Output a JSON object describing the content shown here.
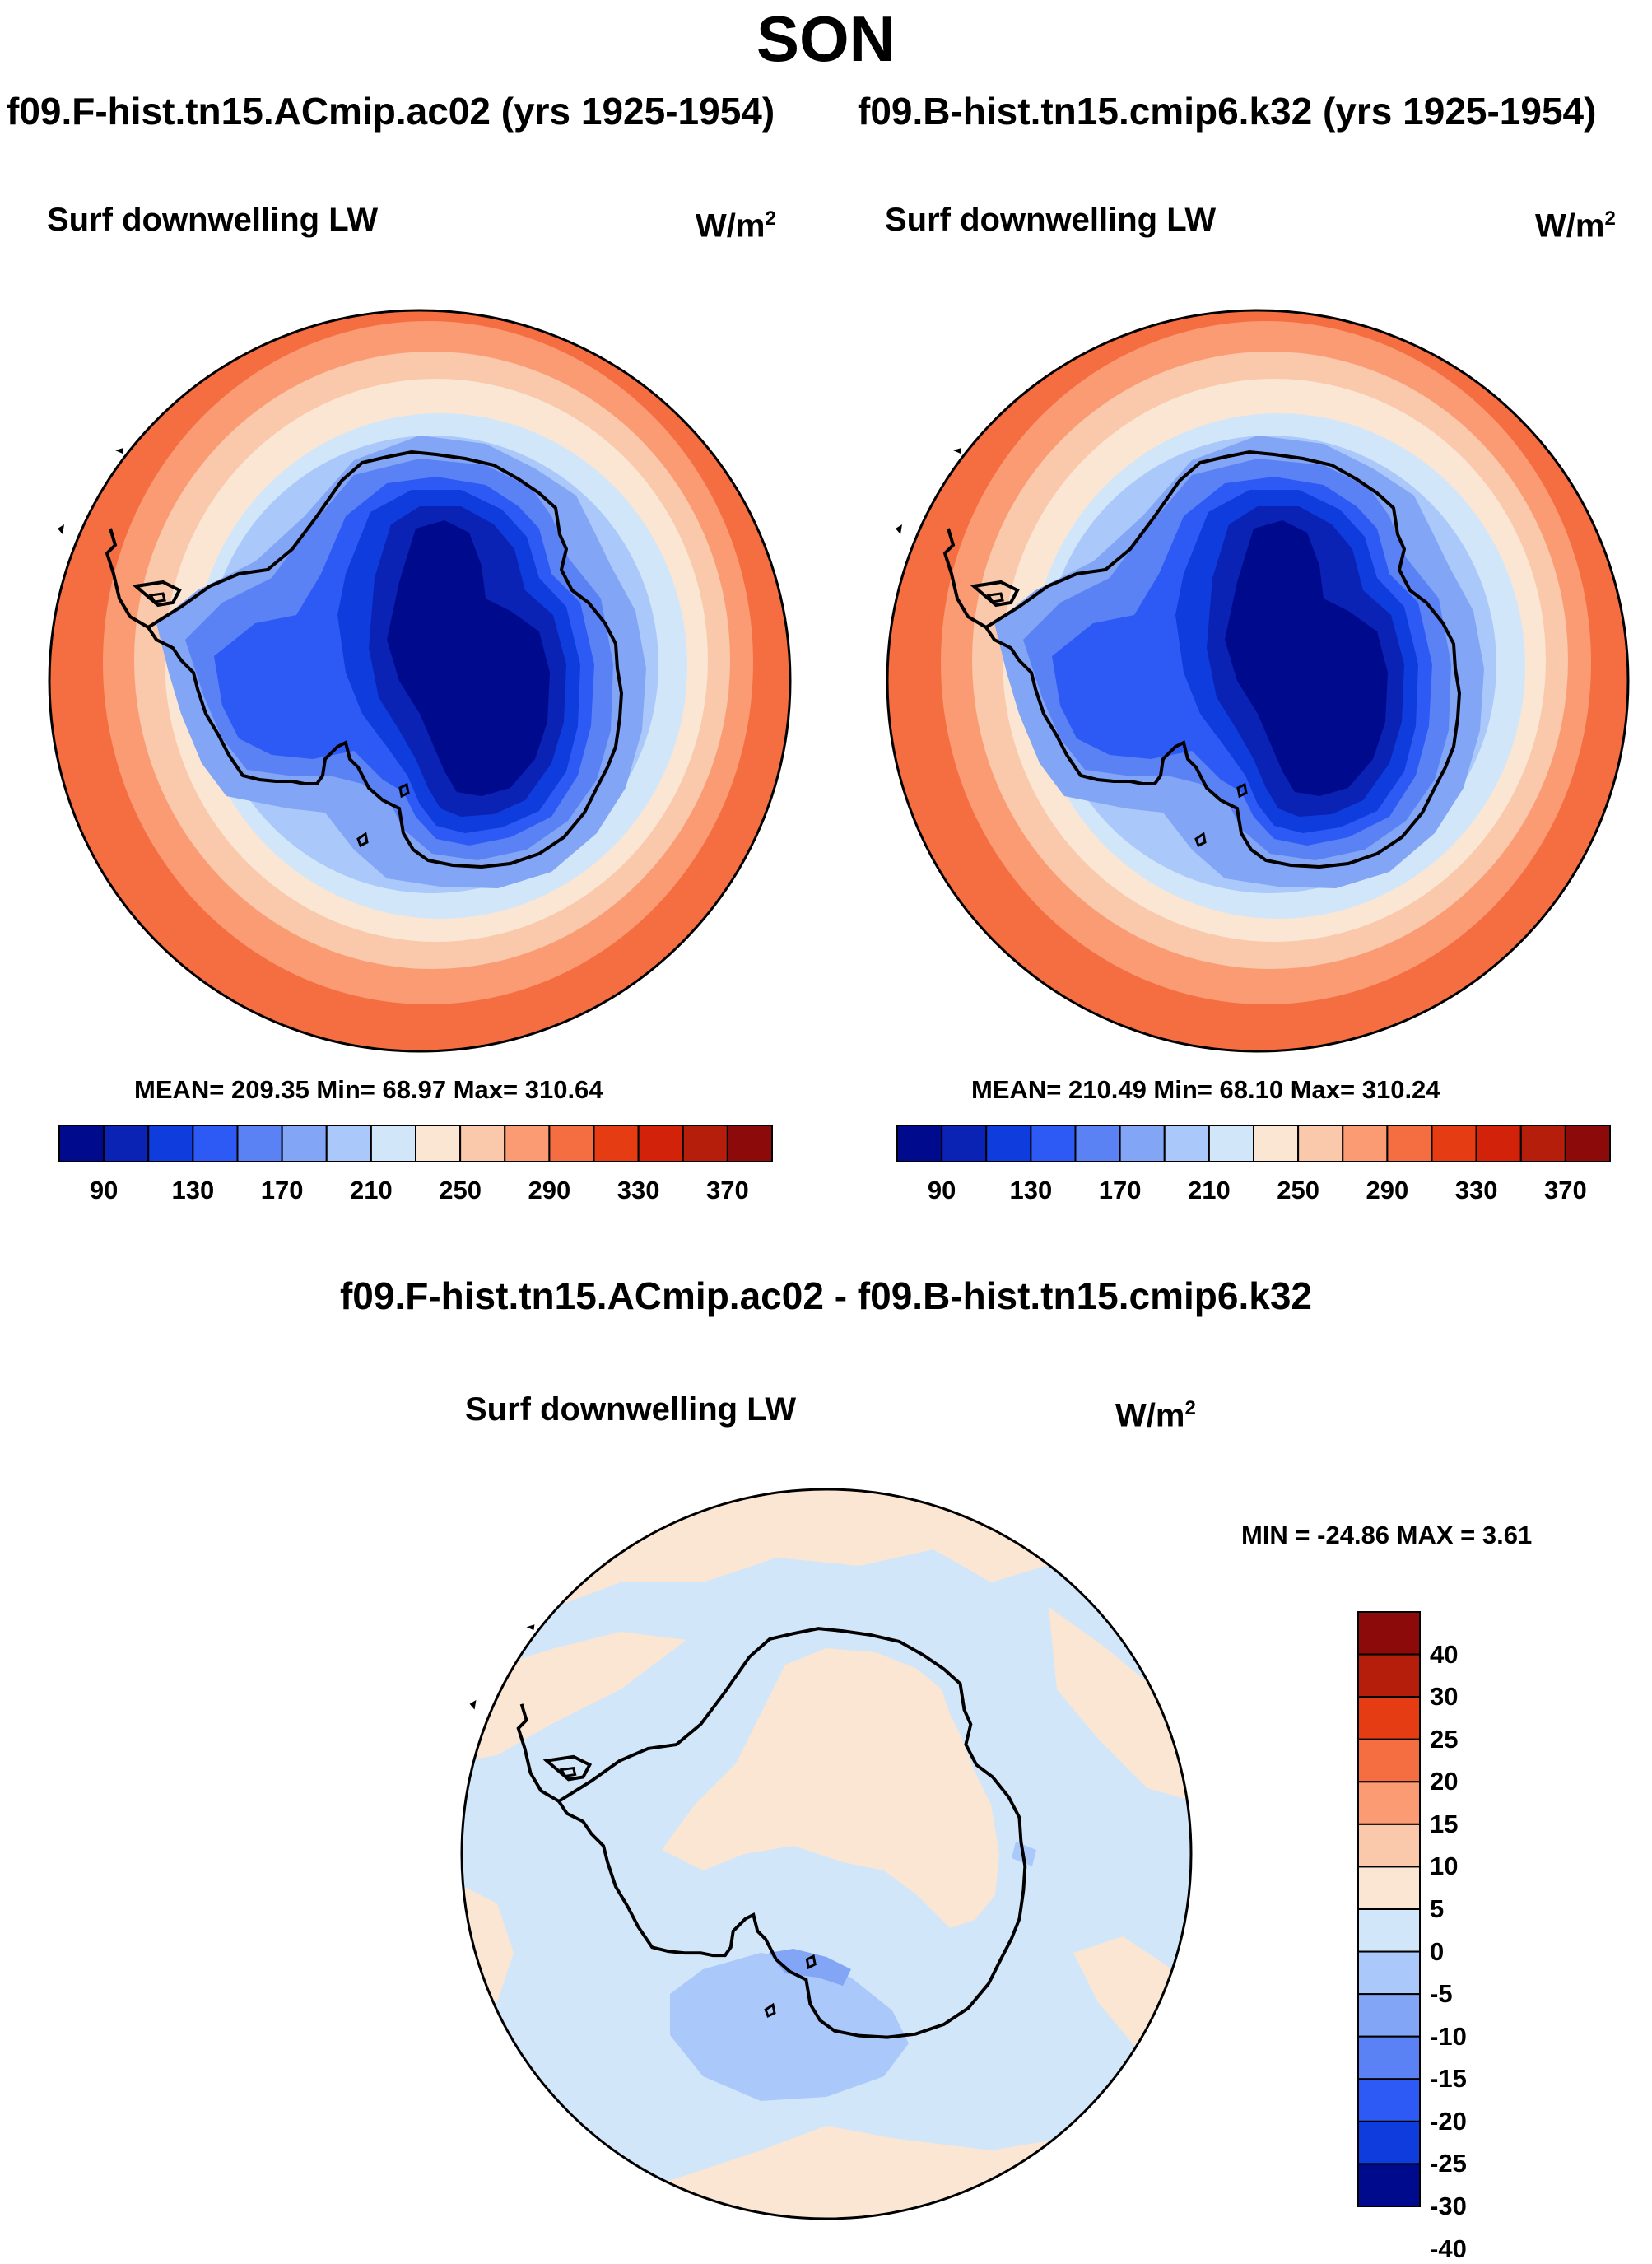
{
  "figure": {
    "title": "SON",
    "variable_label": "Surf downwelling LW",
    "units_base": "W/m",
    "units_exp": "2"
  },
  "panels": [
    {
      "run": "f09.F-hist.tn15.ACmip.ac02 (yrs 1925-1954)",
      "stats": "MEAN= 209.35  Min=  68.97  Max= 310.64",
      "mean": 209.35,
      "min": 68.97,
      "max": 310.64
    },
    {
      "run": "f09.B-hist.tn15.cmip6.k32 (yrs 1925-1954)",
      "stats": "MEAN= 210.49  Min=  68.10  Max= 310.24",
      "mean": 210.49,
      "min": 68.1,
      "max": 310.24
    }
  ],
  "difference": {
    "title": "f09.F-hist.tn15.ACmip.ac02 - f09.B-hist.tn15.cmip6.k32",
    "minmax": "MIN = -24.86 MAX =   3.61",
    "min": -24.86,
    "max": 3.61
  },
  "colorbar_abs": {
    "tick_labels": [
      "90",
      "130",
      "170",
      "210",
      "250",
      "290",
      "330",
      "370"
    ],
    "colors": [
      "#000a8c",
      "#0a23b4",
      "#0f3cdc",
      "#2d5af5",
      "#5a82f5",
      "#82a5f5",
      "#aac8fa",
      "#d2e6fa",
      "#fae6d2",
      "#fac8aa",
      "#fa9b73",
      "#f56e41",
      "#e63c14",
      "#d2230a",
      "#b41e0a",
      "#8c0a0a"
    ]
  },
  "colorbar_diff": {
    "tick_labels": [
      "40",
      "30",
      "25",
      "20",
      "15",
      "10",
      "5",
      "0",
      "-5",
      "-10",
      "-15",
      "-20",
      "-25",
      "-30",
      "-40"
    ],
    "colors": [
      "#8c0a0a",
      "#b41e0a",
      "#e63c14",
      "#f56e41",
      "#fa9b73",
      "#fac8aa",
      "#fae6d2",
      "#d2e6fa",
      "#aac8fa",
      "#82a5f5",
      "#5a82f5",
      "#2d5af5",
      "#0f3cdc",
      "#000a8c"
    ]
  }
}
